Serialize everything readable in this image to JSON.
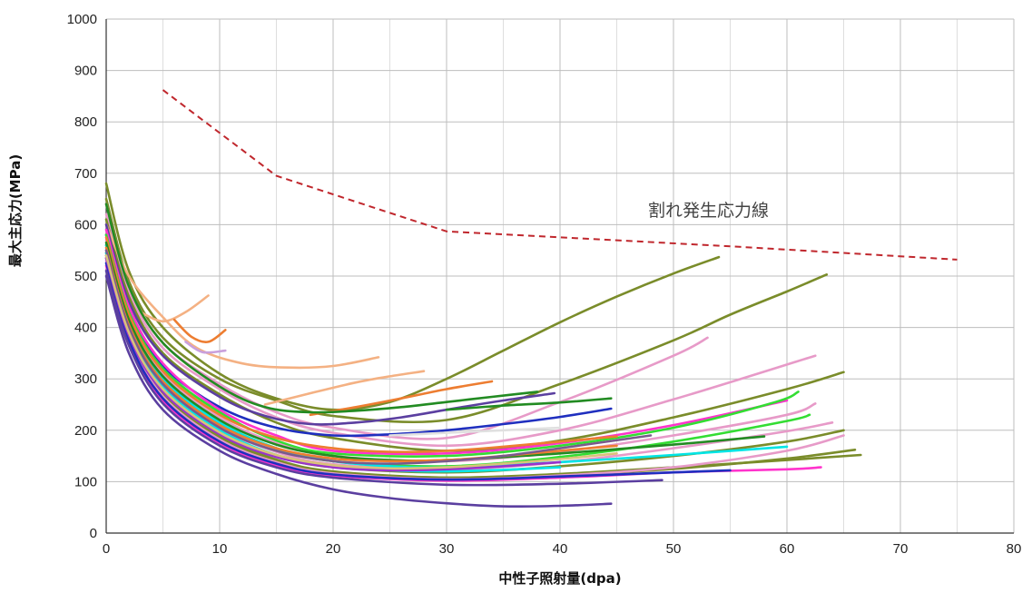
{
  "chart_data": {
    "type": "line",
    "xlabel": "中性子照射量(dpa)",
    "ylabel": "最大主応力(MPa)",
    "xlim": [
      0,
      80
    ],
    "ylim": [
      0,
      1000
    ],
    "x_ticks": [
      "0",
      "10",
      "20",
      "30",
      "40",
      "50",
      "60",
      "70",
      "80"
    ],
    "y_ticks": [
      "0",
      "100",
      "200",
      "300",
      "400",
      "500",
      "600",
      "700",
      "800",
      "900",
      "1000"
    ],
    "grid": true,
    "legend": "none",
    "annotation": "割れ発生応力線",
    "threshold_line": {
      "name": "割れ発生応力線",
      "color": "#c0272d",
      "style": "dashed",
      "x": [
        5,
        15,
        30,
        55,
        75
      ],
      "y": [
        862,
        695,
        587,
        558,
        532
      ]
    },
    "series": [
      {
        "color": "#7a8c2a",
        "x": [
          0,
          2,
          5,
          10,
          15,
          20,
          25,
          30,
          35,
          40,
          45,
          50,
          54
        ],
        "y": [
          680,
          510,
          400,
          310,
          262,
          240,
          255,
          300,
          355,
          410,
          460,
          505,
          537
        ]
      },
      {
        "color": "#7a8c2a",
        "x": [
          0,
          2,
          5,
          10,
          15,
          20,
          30,
          40,
          50,
          55,
          60,
          63.5
        ],
        "y": [
          650,
          490,
          380,
          300,
          258,
          228,
          220,
          290,
          375,
          425,
          470,
          503
        ]
      },
      {
        "color": "#e79ac8",
        "x": [
          0,
          2,
          5,
          10,
          15,
          20,
          30,
          40,
          50,
          53
        ],
        "y": [
          640,
          480,
          370,
          290,
          235,
          205,
          185,
          255,
          345,
          380
        ]
      },
      {
        "color": "#e79ac8",
        "x": [
          0,
          2,
          5,
          10,
          15,
          20,
          30,
          40,
          50,
          62.5
        ],
        "y": [
          620,
          470,
          360,
          280,
          225,
          195,
          170,
          200,
          260,
          345
        ]
      },
      {
        "color": "#7a8c2a",
        "x": [
          0,
          2,
          5,
          10,
          15,
          20,
          30,
          40,
          50,
          60,
          65
        ],
        "y": [
          610,
          460,
          350,
          270,
          215,
          185,
          160,
          180,
          225,
          280,
          313
        ]
      },
      {
        "color": "#f4b183",
        "x": [
          0,
          2,
          5,
          8,
          12,
          16,
          20,
          24
        ],
        "y": [
          600,
          500,
          420,
          360,
          330,
          322,
          325,
          342
        ]
      },
      {
        "color": "#f4b183",
        "x": [
          3,
          5,
          7,
          9
        ],
        "y": [
          430,
          412,
          430,
          462
        ]
      },
      {
        "color": "#ed7d31",
        "x": [
          6,
          7.5,
          9,
          10.5
        ],
        "y": [
          415,
          382,
          372,
          395
        ]
      },
      {
        "color": "#c9a0dc",
        "x": [
          7,
          8.5,
          10.5
        ],
        "y": [
          372,
          352,
          355
        ]
      },
      {
        "color": "#f4b183",
        "x": [
          14,
          18,
          22,
          25,
          28
        ],
        "y": [
          250,
          272,
          293,
          305,
          315
        ]
      },
      {
        "color": "#ed7d31",
        "x": [
          18,
          22,
          26,
          30,
          34
        ],
        "y": [
          230,
          245,
          262,
          280,
          295
        ]
      },
      {
        "color": "#228b22",
        "x": [
          0,
          2,
          5,
          10,
          14,
          18,
          22,
          26,
          30,
          34,
          38
        ],
        "y": [
          640,
          480,
          370,
          285,
          245,
          235,
          238,
          245,
          255,
          265,
          275
        ]
      },
      {
        "color": "#5b3fa0",
        "x": [
          0,
          2,
          5,
          10,
          14,
          18,
          22,
          26,
          30,
          35,
          39.5
        ],
        "y": [
          600,
          450,
          345,
          265,
          228,
          212,
          215,
          225,
          240,
          258,
          272
        ]
      },
      {
        "color": "#1f2fbf",
        "x": [
          0,
          2,
          5,
          10,
          15,
          20,
          25,
          30,
          35,
          40,
          44.5
        ],
        "y": [
          580,
          430,
          325,
          245,
          205,
          190,
          192,
          200,
          212,
          226,
          242
        ]
      },
      {
        "color": "#228b22",
        "x": [
          30,
          35,
          40,
          44.5
        ],
        "y": [
          240,
          248,
          254,
          262
        ]
      },
      {
        "color": "#e0e0e0",
        "x": [
          25,
          30,
          35,
          40
        ],
        "y": [
          190,
          195,
          200,
          205
        ]
      },
      {
        "color": "#ff33cc",
        "x": [
          0,
          2,
          5,
          10,
          15,
          20,
          30,
          40,
          50,
          60
        ],
        "y": [
          590,
          440,
          330,
          240,
          190,
          160,
          155,
          175,
          210,
          258
        ]
      },
      {
        "color": "#33dd33",
        "x": [
          0,
          2,
          5,
          10,
          15,
          20,
          30,
          40,
          50,
          59,
          61
        ],
        "y": [
          580,
          430,
          320,
          235,
          180,
          155,
          150,
          170,
          205,
          255,
          275
        ]
      },
      {
        "color": "#e79ac8",
        "x": [
          0,
          2,
          5,
          10,
          15,
          20,
          30,
          40,
          50,
          60,
          62.5
        ],
        "y": [
          570,
          420,
          310,
          225,
          175,
          150,
          140,
          158,
          190,
          230,
          252
        ]
      },
      {
        "color": "#33dd33",
        "x": [
          0,
          2,
          5,
          10,
          15,
          20,
          30,
          40,
          50,
          60,
          62
        ],
        "y": [
          560,
          410,
          300,
          215,
          165,
          140,
          130,
          148,
          178,
          218,
          230
        ]
      },
      {
        "color": "#e79ac8",
        "x": [
          0,
          2,
          5,
          10,
          15,
          20,
          30,
          40,
          50,
          60,
          64
        ],
        "y": [
          550,
          400,
          290,
          205,
          158,
          134,
          124,
          138,
          165,
          198,
          215
        ]
      },
      {
        "color": "#7a8c2a",
        "x": [
          0,
          2,
          5,
          10,
          15,
          20,
          30,
          40,
          50,
          60,
          65
        ],
        "y": [
          545,
          395,
          282,
          198,
          150,
          128,
          118,
          130,
          150,
          178,
          200
        ]
      },
      {
        "color": "#7a8c2a",
        "x": [
          0,
          2,
          5,
          10,
          15,
          20,
          30,
          40,
          50,
          60,
          66.5
        ],
        "y": [
          540,
          388,
          275,
          190,
          143,
          120,
          108,
          115,
          128,
          142,
          152
        ]
      },
      {
        "color": "#7a8c2a",
        "x": [
          0,
          2,
          5,
          10,
          15,
          20,
          30,
          40,
          50,
          60,
          66
        ],
        "y": [
          535,
          384,
          270,
          185,
          140,
          118,
          108,
          113,
          125,
          145,
          162
        ]
      },
      {
        "color": "#e79ac8",
        "x": [
          0,
          2,
          5,
          10,
          15,
          20,
          30,
          40,
          50,
          60,
          65
        ],
        "y": [
          530,
          380,
          266,
          182,
          138,
          116,
          105,
          112,
          128,
          160,
          190
        ]
      },
      {
        "color": "#00e5e5",
        "x": [
          0,
          2,
          5,
          10,
          15,
          20,
          25,
          30,
          40,
          50,
          60
        ],
        "y": [
          560,
          410,
          300,
          215,
          165,
          140,
          130,
          128,
          138,
          152,
          168
        ]
      },
      {
        "color": "#ff33cc",
        "x": [
          0,
          2,
          5,
          10,
          15,
          20,
          30,
          40,
          50,
          60,
          63
        ],
        "y": [
          520,
          370,
          258,
          175,
          132,
          112,
          102,
          108,
          118,
          124,
          128
        ]
      },
      {
        "color": "#1f2fbf",
        "x": [
          0,
          2,
          5,
          10,
          15,
          20,
          30,
          40,
          50,
          55
        ],
        "y": [
          525,
          375,
          262,
          178,
          135,
          114,
          104,
          110,
          118,
          122
        ]
      },
      {
        "color": "#5b3fa0",
        "x": [
          0,
          2,
          5,
          10,
          15,
          20,
          30,
          40,
          49
        ],
        "y": [
          510,
          365,
          252,
          170,
          128,
          108,
          94,
          96,
          103
        ]
      },
      {
        "color": "#5b3fa0",
        "x": [
          0,
          2,
          5,
          10,
          15,
          20,
          25,
          30,
          35,
          40,
          44.5
        ],
        "y": [
          500,
          350,
          240,
          160,
          115,
          85,
          68,
          58,
          52,
          53,
          57
        ]
      },
      {
        "color": "#ed7d31",
        "x": [
          0,
          2,
          5,
          10,
          15,
          20,
          25,
          30,
          35,
          40,
          45
        ],
        "y": [
          575,
          425,
          315,
          230,
          185,
          165,
          158,
          160,
          168,
          178,
          188
        ]
      },
      {
        "color": "#228b22",
        "x": [
          0,
          2,
          5,
          10,
          15,
          20,
          25,
          30,
          40,
          50,
          58
        ],
        "y": [
          565,
          415,
          305,
          220,
          172,
          150,
          142,
          142,
          155,
          172,
          188
        ]
      },
      {
        "color": "#00e5e5",
        "x": [
          0,
          2,
          5,
          10,
          15,
          20,
          25,
          30,
          35,
          40
        ],
        "y": [
          545,
          395,
          285,
          200,
          152,
          130,
          122,
          120,
          123,
          128
        ]
      },
      {
        "color": "#ed7d31",
        "x": [
          0,
          2,
          5,
          10,
          15,
          20,
          25,
          30,
          35,
          40,
          45
        ],
        "y": [
          555,
          405,
          295,
          210,
          165,
          145,
          140,
          142,
          150,
          160,
          170
        ]
      },
      {
        "color": "#9933cc",
        "x": [
          0,
          2,
          5,
          10,
          15,
          20,
          25,
          30,
          35,
          40
        ],
        "y": [
          535,
          385,
          275,
          192,
          148,
          128,
          122,
          124,
          130,
          138
        ]
      },
      {
        "color": "#7a5a8c",
        "x": [
          0,
          2,
          5,
          10,
          15,
          20,
          25,
          30,
          35,
          40,
          48
        ],
        "y": [
          550,
          400,
          290,
          205,
          160,
          140,
          135,
          140,
          150,
          165,
          190
        ]
      },
      {
        "color": "#d9c27a",
        "x": [
          0,
          2,
          5,
          10,
          15,
          20,
          25,
          30,
          35,
          40,
          45
        ],
        "y": [
          540,
          390,
          280,
          196,
          152,
          132,
          126,
          128,
          135,
          144,
          155
        ]
      }
    ]
  }
}
